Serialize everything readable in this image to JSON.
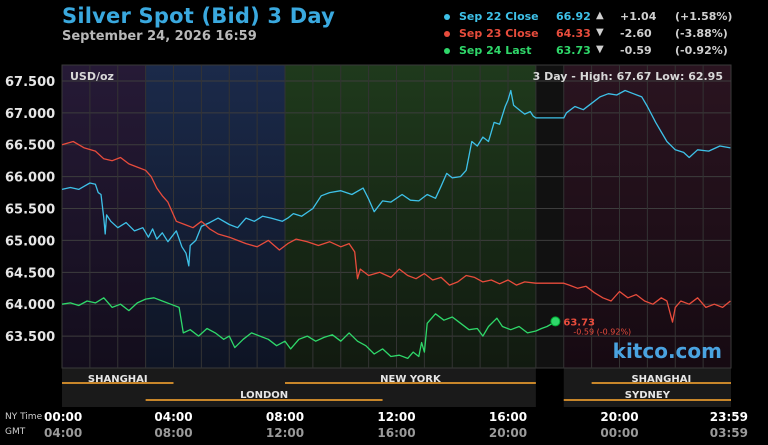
{
  "header": {
    "title": "Silver Spot (Bid) 3 Day",
    "subtitle": "September 24, 2026 16:59"
  },
  "legend": [
    {
      "name": "Sep 22 Close",
      "value": "66.92",
      "arrow": "▲",
      "change": "+1.04",
      "pct": "(+1.58%)",
      "color": "#3ec1e8"
    },
    {
      "name": "Sep 23 Close",
      "value": "64.33",
      "arrow": "▼",
      "change": "-2.60",
      "pct": "(-3.88%)",
      "color": "#e84c3c"
    },
    {
      "name": "Sep 24 Last",
      "value": "63.73",
      "arrow": "▼",
      "change": "-0.59",
      "pct": "(-0.92%)",
      "color": "#2fd86a"
    }
  ],
  "chart_data": {
    "type": "line",
    "unit_label": "USD/oz",
    "range_label": "3 Day - High: 67.67  Low: 62.95",
    "ylim": [
      63.0,
      67.75
    ],
    "y_ticks": [
      "67.500",
      "67.000",
      "66.500",
      "66.000",
      "65.500",
      "65.000",
      "64.500",
      "64.000",
      "63.500"
    ],
    "y_values": [
      67.5,
      67.0,
      66.5,
      66.0,
      65.5,
      65.0,
      64.5,
      64.0,
      63.5
    ],
    "xlim": [
      0,
      24
    ],
    "x_ticks_ny": [
      "00:00",
      "04:00",
      "08:00",
      "12:00",
      "16:00",
      "20:00",
      "23:59"
    ],
    "x_ticks_gmt": [
      "04:00",
      "08:00",
      "12:00",
      "16:00",
      "20:00",
      "00:00",
      "03:59"
    ],
    "x_tick_hours": [
      0,
      4,
      8,
      12,
      16,
      20,
      23.98
    ],
    "x_row_labels": [
      "NY Time",
      "GMT"
    ],
    "sessions_top": [
      {
        "name": "SHANGHAI",
        "start": 0,
        "end": 4
      },
      {
        "name": "NEW YORK",
        "start": 8,
        "end": 17
      },
      {
        "name": "SHANGHAI",
        "start": 19,
        "end": 24
      }
    ],
    "sessions_bottom": [
      {
        "name": "LONDON",
        "start": 3,
        "end": 11.5
      },
      {
        "name": "SYDNEY",
        "start": 18,
        "end": 24
      }
    ],
    "last_label": {
      "value": "63.73",
      "change": "-0.59 (-0.92%)"
    },
    "watermark": "kitco.com",
    "series": [
      {
        "name": "Sep 22 Close",
        "color": "#3ec1e8",
        "points": [
          [
            0,
            65.8
          ],
          [
            0.3,
            65.83
          ],
          [
            0.6,
            65.8
          ],
          [
            0.8,
            65.85
          ],
          [
            1.0,
            65.9
          ],
          [
            1.2,
            65.88
          ],
          [
            1.3,
            65.75
          ],
          [
            1.4,
            65.72
          ],
          [
            1.5,
            65.35
          ],
          [
            1.55,
            65.1
          ],
          [
            1.6,
            65.4
          ],
          [
            1.75,
            65.3
          ],
          [
            2.0,
            65.2
          ],
          [
            2.3,
            65.28
          ],
          [
            2.6,
            65.15
          ],
          [
            2.9,
            65.2
          ],
          [
            3.1,
            65.05
          ],
          [
            3.25,
            65.18
          ],
          [
            3.4,
            65.02
          ],
          [
            3.6,
            65.12
          ],
          [
            3.8,
            64.98
          ],
          [
            4.1,
            65.15
          ],
          [
            4.3,
            64.9
          ],
          [
            4.45,
            64.8
          ],
          [
            4.55,
            64.6
          ],
          [
            4.6,
            64.92
          ],
          [
            4.8,
            65.0
          ],
          [
            5.0,
            65.22
          ],
          [
            5.3,
            65.28
          ],
          [
            5.6,
            65.35
          ],
          [
            6.0,
            65.25
          ],
          [
            6.3,
            65.2
          ],
          [
            6.6,
            65.35
          ],
          [
            6.9,
            65.3
          ],
          [
            7.2,
            65.38
          ],
          [
            7.5,
            65.35
          ],
          [
            7.9,
            65.3
          ],
          [
            8.1,
            65.35
          ],
          [
            8.3,
            65.42
          ],
          [
            8.6,
            65.38
          ],
          [
            9.0,
            65.5
          ],
          [
            9.3,
            65.7
          ],
          [
            9.6,
            65.75
          ],
          [
            10.0,
            65.78
          ],
          [
            10.4,
            65.72
          ],
          [
            10.8,
            65.82
          ],
          [
            11.0,
            65.65
          ],
          [
            11.2,
            65.45
          ],
          [
            11.5,
            65.62
          ],
          [
            11.8,
            65.6
          ],
          [
            12.2,
            65.72
          ],
          [
            12.5,
            65.63
          ],
          [
            12.8,
            65.62
          ],
          [
            13.1,
            65.72
          ],
          [
            13.4,
            65.66
          ],
          [
            13.6,
            65.85
          ],
          [
            13.8,
            66.05
          ],
          [
            14.0,
            65.98
          ],
          [
            14.3,
            66.0
          ],
          [
            14.5,
            66.1
          ],
          [
            14.7,
            66.55
          ],
          [
            14.9,
            66.48
          ],
          [
            15.1,
            66.62
          ],
          [
            15.3,
            66.55
          ],
          [
            15.5,
            66.85
          ],
          [
            15.7,
            66.82
          ],
          [
            15.9,
            67.1
          ],
          [
            16.0,
            67.2
          ],
          [
            16.1,
            67.35
          ],
          [
            16.2,
            67.12
          ],
          [
            16.4,
            67.05
          ],
          [
            16.6,
            66.98
          ],
          [
            16.8,
            67.02
          ],
          [
            16.9,
            66.95
          ],
          [
            17.0,
            66.92
          ],
          [
            18.0,
            66.92
          ],
          [
            18.1,
            67.0
          ],
          [
            18.4,
            67.1
          ],
          [
            18.7,
            67.05
          ],
          [
            19.0,
            67.15
          ],
          [
            19.3,
            67.25
          ],
          [
            19.6,
            67.3
          ],
          [
            19.9,
            67.28
          ],
          [
            20.2,
            67.35
          ],
          [
            20.5,
            67.3
          ],
          [
            20.8,
            67.25
          ],
          [
            21.0,
            67.1
          ],
          [
            21.3,
            66.85
          ],
          [
            21.5,
            66.7
          ],
          [
            21.7,
            66.55
          ],
          [
            22.0,
            66.42
          ],
          [
            22.3,
            66.38
          ],
          [
            22.5,
            66.3
          ],
          [
            22.8,
            66.42
          ],
          [
            23.2,
            66.4
          ],
          [
            23.6,
            66.48
          ],
          [
            23.98,
            66.45
          ]
        ]
      },
      {
        "name": "Sep 23 Close",
        "color": "#e84c3c",
        "points": [
          [
            0,
            66.5
          ],
          [
            0.4,
            66.55
          ],
          [
            0.8,
            66.45
          ],
          [
            1.2,
            66.4
          ],
          [
            1.5,
            66.28
          ],
          [
            1.8,
            66.25
          ],
          [
            2.1,
            66.3
          ],
          [
            2.4,
            66.2
          ],
          [
            2.7,
            66.15
          ],
          [
            3.0,
            66.1
          ],
          [
            3.2,
            66.0
          ],
          [
            3.4,
            65.82
          ],
          [
            3.6,
            65.7
          ],
          [
            3.8,
            65.6
          ],
          [
            3.95,
            65.45
          ],
          [
            4.1,
            65.3
          ],
          [
            4.4,
            65.25
          ],
          [
            4.7,
            65.2
          ],
          [
            5.0,
            65.3
          ],
          [
            5.3,
            65.18
          ],
          [
            5.6,
            65.1
          ],
          [
            6.0,
            65.05
          ],
          [
            6.3,
            65.0
          ],
          [
            6.6,
            64.95
          ],
          [
            7.0,
            64.9
          ],
          [
            7.4,
            65.0
          ],
          [
            7.8,
            64.85
          ],
          [
            8.1,
            64.95
          ],
          [
            8.4,
            65.02
          ],
          [
            8.8,
            64.98
          ],
          [
            9.2,
            64.92
          ],
          [
            9.6,
            64.98
          ],
          [
            10.0,
            64.9
          ],
          [
            10.3,
            64.95
          ],
          [
            10.5,
            64.82
          ],
          [
            10.6,
            64.4
          ],
          [
            10.7,
            64.55
          ],
          [
            11.0,
            64.45
          ],
          [
            11.4,
            64.5
          ],
          [
            11.8,
            64.42
          ],
          [
            12.1,
            64.55
          ],
          [
            12.4,
            64.45
          ],
          [
            12.7,
            64.4
          ],
          [
            13.0,
            64.48
          ],
          [
            13.3,
            64.38
          ],
          [
            13.6,
            64.42
          ],
          [
            13.9,
            64.3
          ],
          [
            14.2,
            64.35
          ],
          [
            14.5,
            64.45
          ],
          [
            14.8,
            64.42
          ],
          [
            15.1,
            64.35
          ],
          [
            15.4,
            64.38
          ],
          [
            15.7,
            64.32
          ],
          [
            16.0,
            64.38
          ],
          [
            16.3,
            64.3
          ],
          [
            16.6,
            64.35
          ],
          [
            17.0,
            64.33
          ],
          [
            18.0,
            64.33
          ],
          [
            18.2,
            64.3
          ],
          [
            18.5,
            64.25
          ],
          [
            18.8,
            64.28
          ],
          [
            19.1,
            64.18
          ],
          [
            19.4,
            64.1
          ],
          [
            19.7,
            64.05
          ],
          [
            20.0,
            64.2
          ],
          [
            20.3,
            64.1
          ],
          [
            20.6,
            64.15
          ],
          [
            20.9,
            64.05
          ],
          [
            21.2,
            64.0
          ],
          [
            21.5,
            64.1
          ],
          [
            21.7,
            64.05
          ],
          [
            21.9,
            63.72
          ],
          [
            22.0,
            63.95
          ],
          [
            22.2,
            64.05
          ],
          [
            22.5,
            64.0
          ],
          [
            22.8,
            64.1
          ],
          [
            23.1,
            63.95
          ],
          [
            23.4,
            64.0
          ],
          [
            23.7,
            63.95
          ],
          [
            23.98,
            64.05
          ]
        ]
      },
      {
        "name": "Sep 24 Last",
        "color": "#2fd86a",
        "points": [
          [
            0,
            64.0
          ],
          [
            0.3,
            64.02
          ],
          [
            0.6,
            63.98
          ],
          [
            0.9,
            64.05
          ],
          [
            1.2,
            64.02
          ],
          [
            1.5,
            64.1
          ],
          [
            1.8,
            63.95
          ],
          [
            2.1,
            64.0
          ],
          [
            2.4,
            63.9
          ],
          [
            2.7,
            64.02
          ],
          [
            3.0,
            64.08
          ],
          [
            3.3,
            64.1
          ],
          [
            3.6,
            64.05
          ],
          [
            3.9,
            64.0
          ],
          [
            4.2,
            63.95
          ],
          [
            4.35,
            63.55
          ],
          [
            4.6,
            63.6
          ],
          [
            4.9,
            63.5
          ],
          [
            5.2,
            63.62
          ],
          [
            5.5,
            63.55
          ],
          [
            5.8,
            63.45
          ],
          [
            6.0,
            63.5
          ],
          [
            6.2,
            63.32
          ],
          [
            6.5,
            63.45
          ],
          [
            6.8,
            63.55
          ],
          [
            7.1,
            63.5
          ],
          [
            7.4,
            63.45
          ],
          [
            7.7,
            63.35
          ],
          [
            8.0,
            63.42
          ],
          [
            8.2,
            63.3
          ],
          [
            8.5,
            63.45
          ],
          [
            8.8,
            63.5
          ],
          [
            9.1,
            63.42
          ],
          [
            9.4,
            63.48
          ],
          [
            9.7,
            63.52
          ],
          [
            10.0,
            63.42
          ],
          [
            10.3,
            63.55
          ],
          [
            10.6,
            63.42
          ],
          [
            10.9,
            63.35
          ],
          [
            11.2,
            63.22
          ],
          [
            11.5,
            63.3
          ],
          [
            11.8,
            63.18
          ],
          [
            12.1,
            63.2
          ],
          [
            12.4,
            63.15
          ],
          [
            12.6,
            63.25
          ],
          [
            12.8,
            63.18
          ],
          [
            12.9,
            63.4
          ],
          [
            13.0,
            63.25
          ],
          [
            13.1,
            63.7
          ],
          [
            13.4,
            63.85
          ],
          [
            13.7,
            63.75
          ],
          [
            14.0,
            63.8
          ],
          [
            14.3,
            63.7
          ],
          [
            14.6,
            63.6
          ],
          [
            14.9,
            63.62
          ],
          [
            15.1,
            63.5
          ],
          [
            15.3,
            63.65
          ],
          [
            15.6,
            63.78
          ],
          [
            15.8,
            63.65
          ],
          [
            16.1,
            63.6
          ],
          [
            16.4,
            63.65
          ],
          [
            16.7,
            63.55
          ],
          [
            17.0,
            63.58
          ],
          [
            17.2,
            63.62
          ],
          [
            17.4,
            63.65
          ],
          [
            17.6,
            63.7
          ],
          [
            17.7,
            63.73
          ]
        ]
      }
    ]
  }
}
